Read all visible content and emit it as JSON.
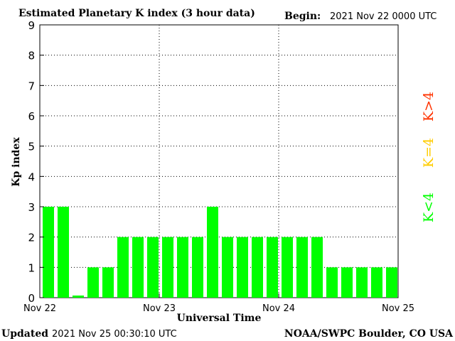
{
  "header": {
    "title": "Estimated Planetary K index (3 hour data)",
    "begin_label": "Begin:",
    "begin_value": "2021 Nov 22 0000 UTC"
  },
  "footer": {
    "updated_label": "Updated",
    "updated_value": "2021 Nov 25 00:30:10 UTC",
    "credit": "NOAA/SWPC Boulder, CO USA"
  },
  "side_legend": {
    "high": "K>4",
    "mid": "K=4",
    "low": "K<4"
  },
  "colors": {
    "low": "#00ff00",
    "mid": "#ffcc00",
    "high": "#ff3300"
  },
  "chart_data": {
    "type": "bar",
    "title": "Estimated Planetary K index (3 hour data)",
    "xlabel": "Universal Time",
    "ylabel": "Kp index",
    "ylim": [
      0,
      9
    ],
    "yticks": [
      "0",
      "1",
      "2",
      "3",
      "4",
      "5",
      "6",
      "7",
      "8",
      "9"
    ],
    "xtick_labels": [
      "Nov 22",
      "Nov 23",
      "Nov 24",
      "Nov 25"
    ],
    "grid": true,
    "values": [
      3,
      3,
      0.07,
      1,
      1,
      2,
      2,
      2,
      2,
      2,
      2,
      3,
      2,
      2,
      2,
      2,
      2,
      2,
      2,
      1,
      1,
      1,
      1,
      1
    ]
  }
}
